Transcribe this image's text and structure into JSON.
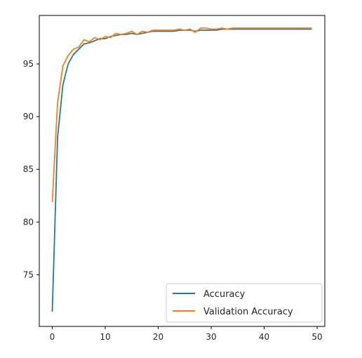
{
  "chart_data": {
    "type": "line",
    "title": "",
    "xlabel": "",
    "ylabel": "",
    "xlim": [
      -2.45,
      51.45
    ],
    "ylim": [
      70.1,
      99.6
    ],
    "xticks": [
      0,
      10,
      20,
      30,
      40,
      50
    ],
    "yticks": [
      75,
      80,
      85,
      90,
      95
    ],
    "grid": false,
    "legend_position": "lower-right",
    "x": [
      0,
      1,
      2,
      3,
      4,
      5,
      6,
      7,
      8,
      9,
      10,
      11,
      12,
      13,
      14,
      15,
      16,
      17,
      18,
      19,
      20,
      21,
      22,
      23,
      24,
      25,
      26,
      27,
      28,
      29,
      30,
      31,
      32,
      33,
      34,
      35,
      36,
      37,
      38,
      39,
      40,
      41,
      42,
      43,
      44,
      45,
      46,
      47,
      48,
      49
    ],
    "series": [
      {
        "name": "Accuracy",
        "color": "#1f77b4",
        "values": [
          71.5,
          88.0,
          93.0,
          95.0,
          95.9,
          96.4,
          96.9,
          97.0,
          97.2,
          97.4,
          97.4,
          97.6,
          97.7,
          97.8,
          97.8,
          97.9,
          97.8,
          97.9,
          98.0,
          98.1,
          98.1,
          98.1,
          98.1,
          98.1,
          98.2,
          98.2,
          98.2,
          98.1,
          98.2,
          98.2,
          98.2,
          98.2,
          98.3,
          98.3,
          98.3,
          98.3,
          98.3,
          98.3,
          98.3,
          98.3,
          98.3,
          98.3,
          98.3,
          98.3,
          98.3,
          98.3,
          98.3,
          98.3,
          98.3,
          98.3
        ]
      },
      {
        "name": "Validation Accuracy",
        "color": "#ff7f0e",
        "values": [
          81.9,
          91.3,
          94.8,
          95.8,
          96.4,
          96.6,
          97.3,
          97.1,
          97.5,
          97.3,
          97.6,
          97.5,
          97.9,
          97.8,
          97.9,
          98.1,
          97.8,
          98.1,
          98.0,
          98.2,
          98.2,
          98.2,
          98.2,
          98.2,
          98.3,
          98.2,
          98.3,
          98.0,
          98.4,
          98.4,
          98.3,
          98.3,
          98.4,
          98.3,
          98.4,
          98.4,
          98.4,
          98.4,
          98.4,
          98.4,
          98.4,
          98.4,
          98.4,
          98.4,
          98.4,
          98.4,
          98.4,
          98.4,
          98.4,
          98.4
        ]
      }
    ]
  }
}
